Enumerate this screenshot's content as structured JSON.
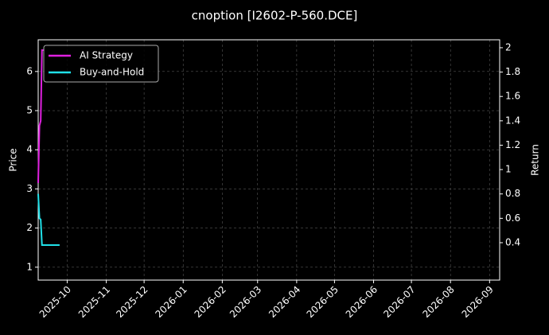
{
  "chart_data": {
    "type": "line",
    "title": "cnoption [I2602-P-560.DCE]",
    "ylabel": "Price",
    "y2label": "Return",
    "xlim": [
      "2025-09-08",
      "2026-09-09"
    ],
    "xticks": [
      "2025-10",
      "2025-11",
      "2025-12",
      "2026-01",
      "2026-02",
      "2026-03",
      "2026-04",
      "2026-05",
      "2026-06",
      "2026-07",
      "2026-08",
      "2026-09"
    ],
    "ylim": [
      0.67,
      6.81
    ],
    "yticks": [
      1,
      2,
      3,
      4,
      5,
      6
    ],
    "y2lim": [
      0.093,
      2.065
    ],
    "y2ticks": [
      0.4,
      0.6,
      0.8,
      1.0,
      1.2,
      1.4,
      1.6,
      1.8,
      2.0
    ],
    "grid": true,
    "legend": "upper left",
    "series": [
      {
        "name": "AI Strategy",
        "color": "#e020e0",
        "axis": "y2",
        "x": [
          "2025-09-08",
          "2025-09-09",
          "2025-09-10",
          "2025-09-11",
          "2025-09-12",
          "2025-09-13"
        ],
        "values": [
          0.89,
          1.36,
          1.4,
          1.98,
          1.98,
          1.98
        ]
      },
      {
        "name": "Buy-and-Hold",
        "color": "#20e0e8",
        "axis": "y2",
        "x": [
          "2025-09-08",
          "2025-09-09",
          "2025-09-10",
          "2025-09-11",
          "2025-09-18",
          "2025-09-25"
        ],
        "values": [
          0.8,
          0.6,
          0.59,
          0.38,
          0.38,
          0.38
        ]
      }
    ]
  }
}
